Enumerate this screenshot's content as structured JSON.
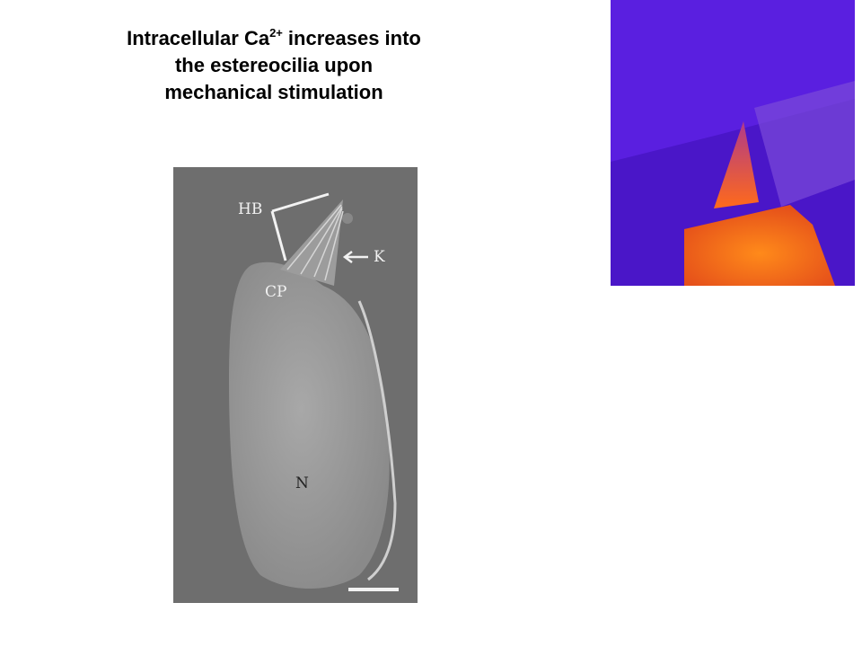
{
  "title": {
    "line1": [
      "Intracellular Ca",
      "2+",
      "increases into"
    ],
    "line2": "the estereocilia upon",
    "line3": "mechanical stimulation"
  },
  "micrograph": {
    "labels": [
      "HB",
      "K",
      "CP",
      "N"
    ]
  }
}
